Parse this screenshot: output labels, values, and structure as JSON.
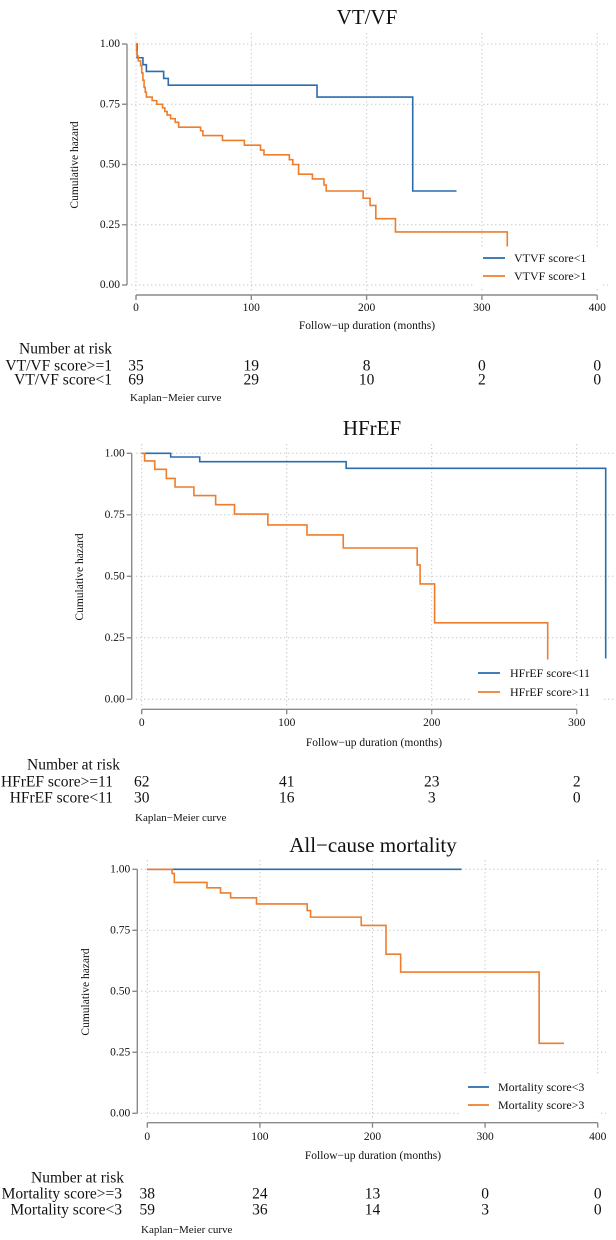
{
  "chart_data": [
    {
      "type": "line",
      "subtype": "kaplan-meier-step",
      "title": "VT/VF",
      "xlabel": "Follow−up duration (months)",
      "ylabel": "Cumulative hazard",
      "xlim": [
        0,
        400
      ],
      "ylim": [
        0,
        1
      ],
      "xticks": [
        0,
        100,
        200,
        300,
        400
      ],
      "yticks": [
        0,
        0.25,
        0.5,
        0.75,
        1
      ],
      "ytick_labels": [
        "0.00",
        "0.25",
        "0.50",
        "0.75",
        "1.00"
      ],
      "grid": true,
      "legend_position": "bottom-right",
      "series": [
        {
          "name": "VTVF score<1",
          "color": "#2a6cad",
          "steps": [
            [
              0,
              1.0
            ],
            [
              1,
              0.943
            ],
            [
              6,
              0.914
            ],
            [
              9,
              0.886
            ],
            [
              24,
              0.857
            ],
            [
              28,
              0.829
            ],
            [
              157,
              0.78
            ],
            [
              240,
              0.39
            ]
          ],
          "end": 278
        },
        {
          "name": "VTVF score>1",
          "color": "#ee7d2c",
          "steps": [
            [
              0,
              1.0
            ],
            [
              0.5,
              0.97
            ],
            [
              1,
              0.95
            ],
            [
              2,
              0.93
            ],
            [
              4,
              0.91
            ],
            [
              5,
              0.88
            ],
            [
              6,
              0.85
            ],
            [
              7,
              0.82
            ],
            [
              8,
              0.8
            ],
            [
              9,
              0.78
            ],
            [
              14,
              0.765
            ],
            [
              18,
              0.75
            ],
            [
              23,
              0.735
            ],
            [
              25,
              0.72
            ],
            [
              27,
              0.705
            ],
            [
              30,
              0.69
            ],
            [
              34,
              0.675
            ],
            [
              37,
              0.655
            ],
            [
              56,
              0.64
            ],
            [
              58,
              0.62
            ],
            [
              75,
              0.6
            ],
            [
              94,
              0.58
            ],
            [
              108,
              0.56
            ],
            [
              111,
              0.54
            ],
            [
              133,
              0.52
            ],
            [
              136,
              0.5
            ],
            [
              141,
              0.46
            ],
            [
              153,
              0.44
            ],
            [
              163,
              0.415
            ],
            [
              165,
              0.39
            ],
            [
              197,
              0.36
            ],
            [
              203,
              0.33
            ],
            [
              208,
              0.275
            ],
            [
              225,
              0.22
            ],
            [
              322,
              0.16
            ]
          ],
          "end": 322
        }
      ],
      "risk_table": {
        "header": "Number at risk",
        "rows": [
          {
            "label": "VT/VF score>=1",
            "values": [
              35,
              19,
              8,
              0,
              0
            ]
          },
          {
            "label": "VT/VF score<1",
            "values": [
              69,
              29,
              10,
              2,
              0
            ]
          }
        ]
      },
      "caption": "Kaplan−Meier curve"
    },
    {
      "type": "line",
      "subtype": "kaplan-meier-step",
      "title": "HFrEF",
      "xlabel": "Follow−up duration (months)",
      "ylabel": "Cumulative hazard",
      "xlim": [
        0,
        330
      ],
      "ylim": [
        0,
        1
      ],
      "xticks": [
        0,
        100,
        200,
        300
      ],
      "yticks": [
        0,
        0.25,
        0.5,
        0.75,
        1
      ],
      "ytick_labels": [
        "0.00",
        "0.25",
        "0.50",
        "0.75",
        "1.00"
      ],
      "grid": true,
      "legend_position": "bottom-right",
      "series": [
        {
          "name": "HFrEF score<11",
          "color": "#2a6cad",
          "steps": [
            [
              0,
              1.0
            ],
            [
              20,
              0.985
            ],
            [
              40,
              0.966
            ],
            [
              141,
              0.939
            ],
            [
              320,
              0.166
            ]
          ],
          "end": 320
        },
        {
          "name": "HFrEF score>11",
          "color": "#ee7d2c",
          "steps": [
            [
              0,
              1.0
            ],
            [
              2,
              0.969
            ],
            [
              9,
              0.935
            ],
            [
              17,
              0.898
            ],
            [
              23,
              0.863
            ],
            [
              36,
              0.828
            ],
            [
              51,
              0.791
            ],
            [
              64,
              0.753
            ],
            [
              87,
              0.709
            ],
            [
              114,
              0.668
            ],
            [
              139,
              0.615
            ],
            [
              190,
              0.546
            ],
            [
              192,
              0.469
            ],
            [
              202,
              0.311
            ],
            [
              280,
              0.162
            ]
          ],
          "end": 280
        }
      ],
      "risk_table": {
        "header": "Number at risk",
        "rows": [
          {
            "label": "HFrEF score>=11",
            "values": [
              62,
              41,
              23,
              2
            ]
          },
          {
            "label": "HFrEF score<11",
            "values": [
              30,
              16,
              3,
              0
            ]
          }
        ]
      },
      "caption": "Kaplan−Meier curve"
    },
    {
      "type": "line",
      "subtype": "kaplan-meier-step",
      "title": "All−cause mortality",
      "xlabel": "Follow−up duration (months)",
      "ylabel": "Cumulative hazard",
      "xlim": [
        0,
        400
      ],
      "ylim": [
        0,
        1
      ],
      "xticks": [
        0,
        100,
        200,
        300,
        400
      ],
      "yticks": [
        0,
        0.25,
        0.5,
        0.75,
        1
      ],
      "ytick_labels": [
        "0.00",
        "0.25",
        "0.50",
        "0.75",
        "1.00"
      ],
      "grid": true,
      "legend_position": "bottom-right",
      "series": [
        {
          "name": "Mortality score<3",
          "color": "#2a6cad",
          "steps": [
            [
              0,
              1.0
            ]
          ],
          "end": 279
        },
        {
          "name": "Mortality score>3",
          "color": "#ee7d2c",
          "steps": [
            [
              0,
              1.0
            ],
            [
              22,
              0.983
            ],
            [
              24,
              0.946
            ],
            [
              53,
              0.924
            ],
            [
              65,
              0.903
            ],
            [
              74,
              0.883
            ],
            [
              97,
              0.858
            ],
            [
              142,
              0.831
            ],
            [
              145,
              0.804
            ],
            [
              190,
              0.77
            ],
            [
              212,
              0.652
            ],
            [
              225,
              0.579
            ],
            [
              348,
              0.287
            ]
          ],
          "end": 370
        }
      ],
      "risk_table": {
        "header": "Number at risk",
        "rows": [
          {
            "label": "Mortality score>=3",
            "values": [
              38,
              24,
              13,
              0,
              0
            ]
          },
          {
            "label": "Mortality score<3",
            "values": [
              59,
              36,
              14,
              3,
              0
            ]
          }
        ]
      },
      "caption": "Kaplan−Meier curve"
    }
  ]
}
